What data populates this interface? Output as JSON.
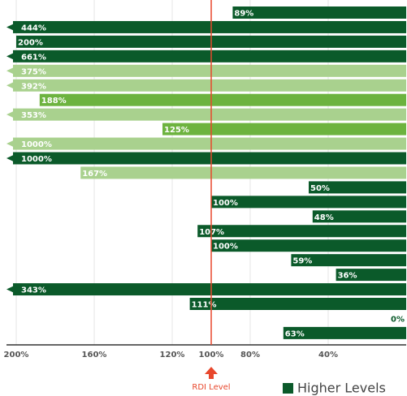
{
  "chart_data": {
    "type": "bar",
    "orientation": "horizontal",
    "values": [
      89,
      444,
      200,
      661,
      375,
      392,
      188,
      353,
      125,
      1000,
      1000,
      167,
      50,
      100,
      48,
      107,
      100,
      59,
      36,
      343,
      111,
      0,
      63
    ],
    "value_labels": [
      "89%",
      "444%",
      "200%",
      "661%",
      "375%",
      "392%",
      "188%",
      "353%",
      "125%",
      "1000%",
      "1000%",
      "167%",
      "50%",
      "100%",
      "48%",
      "107%",
      "100%",
      "59%",
      "36%",
      "343%",
      "111%",
      "0%",
      "63%"
    ],
    "colors": [
      "#0b5a2a",
      "#0b5a2a",
      "#0b5a2a",
      "#0b5a2a",
      "#a9d18e",
      "#a9d18e",
      "#6db33f",
      "#a9d18e",
      "#6db33f",
      "#a9d18e",
      "#0b5a2a",
      "#a9d18e",
      "#0b5a2a",
      "#0b5a2a",
      "#0b5a2a",
      "#0b5a2a",
      "#0b5a2a",
      "#0b5a2a",
      "#0b5a2a",
      "#0b5a2a",
      "#0b5a2a",
      "#0b5a2a",
      "#0b5a2a"
    ],
    "xlim": [
      205,
      0
    ],
    "xticks": [
      {
        "value": 200,
        "label": "200%"
      },
      {
        "value": 160,
        "label": "160%"
      },
      {
        "value": 120,
        "label": "120%"
      },
      {
        "value": 100,
        "label": "100%"
      },
      {
        "value": 80,
        "label": "80%"
      },
      {
        "value": 40,
        "label": "40%"
      }
    ],
    "reference_line": {
      "value": 100,
      "label": "RDI Level",
      "color": "#e8472c"
    },
    "legend": {
      "name": "Higher Levels",
      "color": "#0b5a2a"
    },
    "grid": true
  }
}
